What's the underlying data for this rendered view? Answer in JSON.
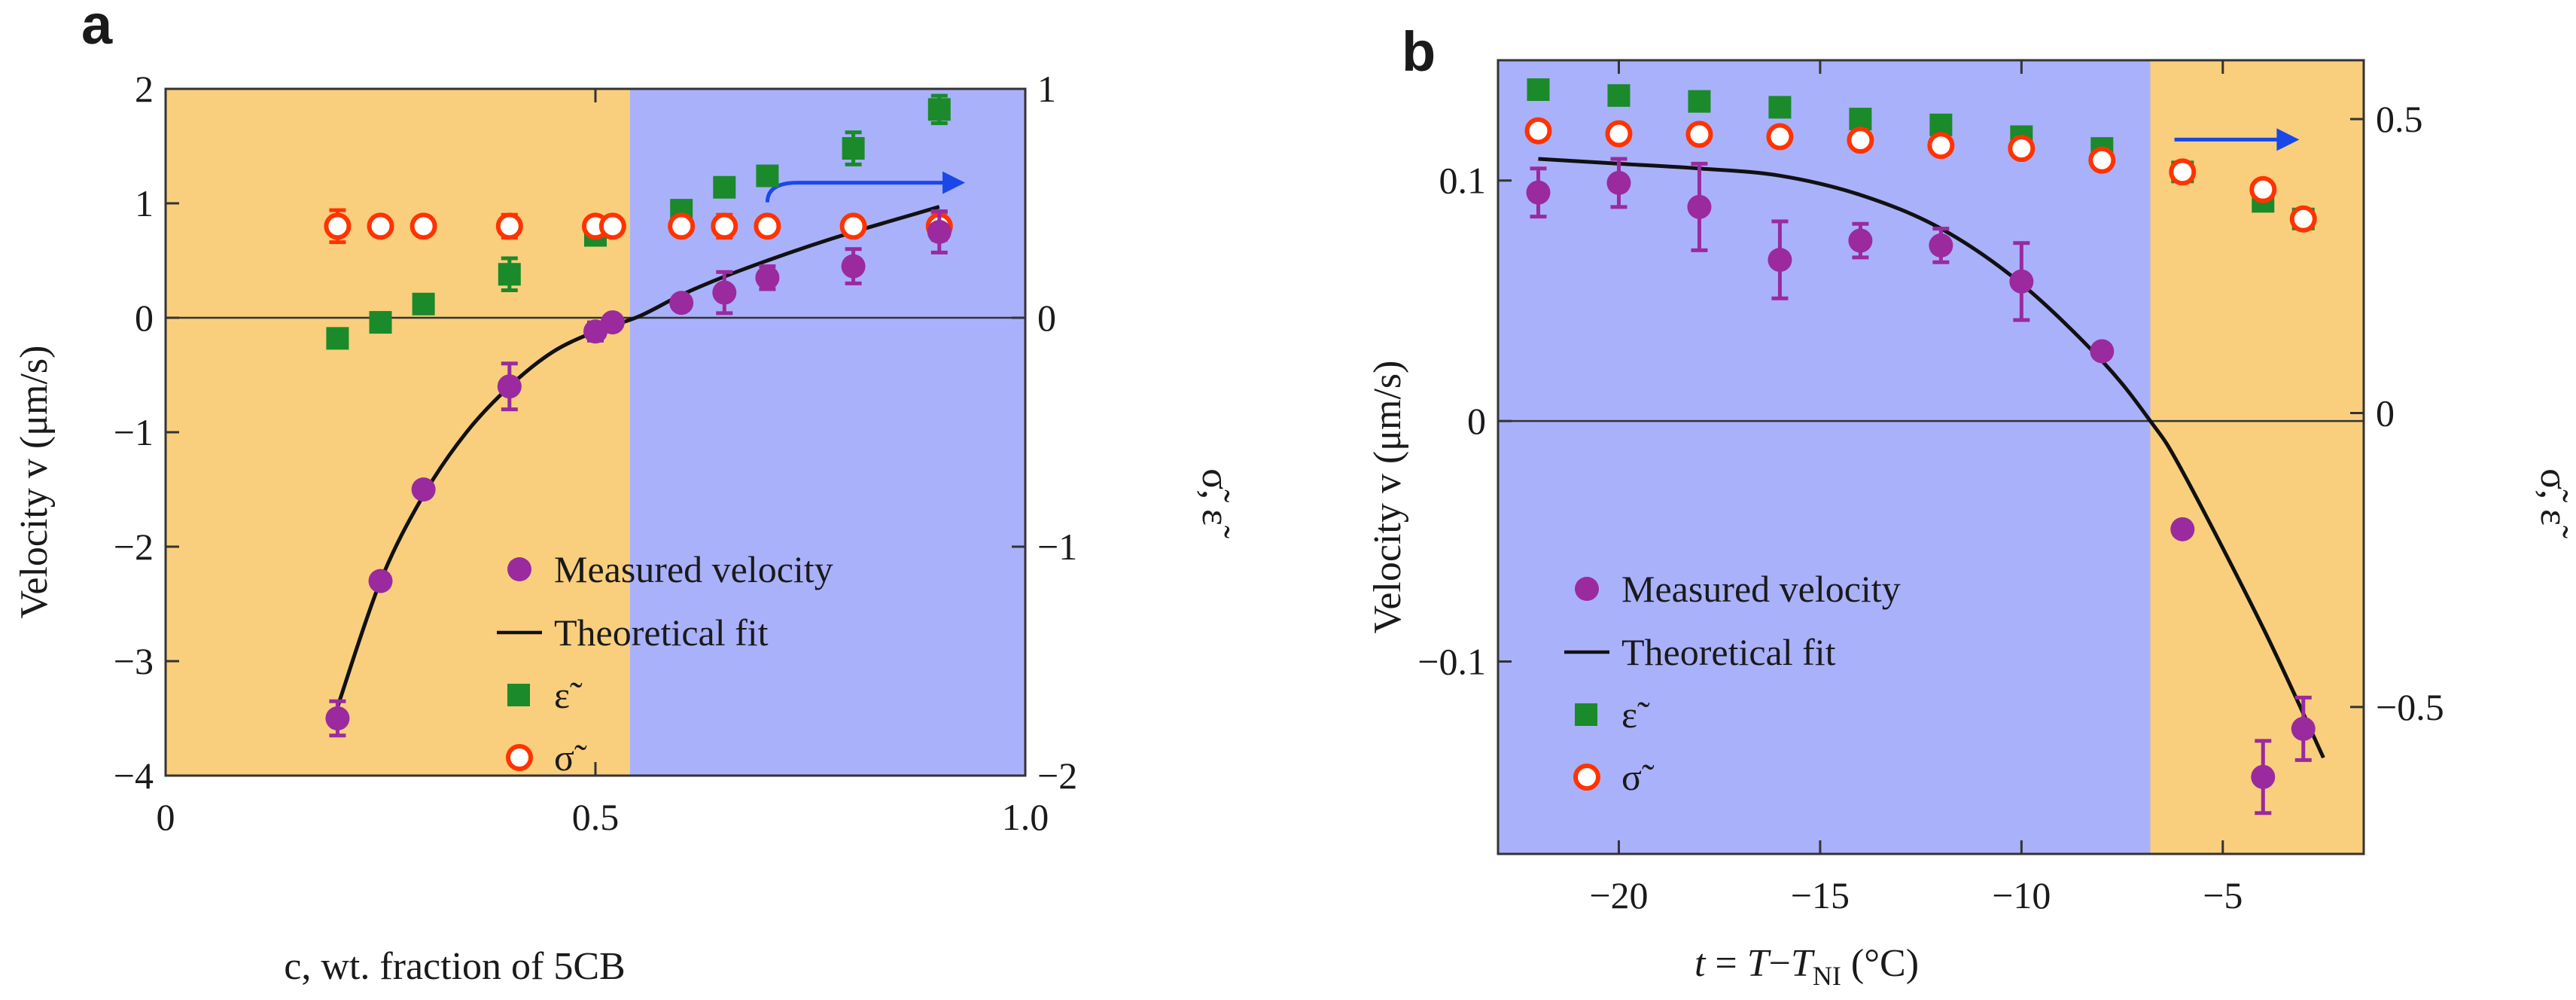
{
  "chart_data": [
    {
      "panel_label": "a",
      "type": "scatter",
      "xlabel": "c, wt. fraction of 5CB",
      "ylabel": "Velocity v (μm/s)",
      "ylabel_right": "σ̃, ε̃",
      "xlim": [
        0,
        1.0
      ],
      "ylim": [
        -4,
        2
      ],
      "ylim_right": [
        -2,
        1
      ],
      "x_ticks": [
        0,
        0.5,
        1.0
      ],
      "x_tick_labels": [
        "0",
        "0.5",
        "1.0"
      ],
      "y_ticks": [
        -4,
        -3,
        -2,
        -1,
        0,
        1,
        2
      ],
      "y_tick_labels": [
        "−4",
        "−3",
        "−2",
        "−1",
        "0",
        "1",
        "2"
      ],
      "y_right_ticks": [
        -2,
        -1,
        0,
        1
      ],
      "y_right_tick_labels": [
        "−2",
        "−1",
        "0",
        "1"
      ],
      "background_regions": [
        {
          "x_from": 0,
          "x_to": 0.54,
          "color": "#f9cf7d"
        },
        {
          "x_from": 0.54,
          "x_to": 1.0,
          "color": "#aab1fb"
        }
      ],
      "arrow": {
        "x_from": 0.7,
        "x_to": 0.93,
        "y": 1.18,
        "direction": "right",
        "color": "#1a48e8"
      },
      "series": [
        {
          "name": "Measured velocity",
          "marker": "circle",
          "color": "#9a2a9e",
          "axis": "left",
          "x": [
            0.2,
            0.25,
            0.3,
            0.4,
            0.5,
            0.52,
            0.6,
            0.65,
            0.7,
            0.8,
            0.9
          ],
          "y": [
            -3.5,
            -2.3,
            -1.5,
            -0.6,
            -0.12,
            -0.04,
            0.13,
            0.22,
            0.35,
            0.45,
            0.75
          ],
          "err": [
            0.15,
            0,
            0,
            0.2,
            0.08,
            0,
            0,
            0.18,
            0.1,
            0.15,
            0.18
          ]
        },
        {
          "name": "Theoretical fit",
          "marker": "line",
          "color": "#111111",
          "axis": "left",
          "x": [
            0.2,
            0.25,
            0.3,
            0.35,
            0.4,
            0.45,
            0.5,
            0.55,
            0.6,
            0.65,
            0.7,
            0.75,
            0.8,
            0.85,
            0.9
          ],
          "y": [
            -3.4,
            -2.3,
            -1.55,
            -1.0,
            -0.6,
            -0.3,
            -0.12,
            0.01,
            0.2,
            0.36,
            0.5,
            0.63,
            0.75,
            0.86,
            0.97
          ]
        },
        {
          "name": "ε̃",
          "marker": "square",
          "color": "#1a8a2a",
          "axis": "right",
          "x": [
            0.2,
            0.25,
            0.3,
            0.4,
            0.5,
            0.6,
            0.65,
            0.7,
            0.8,
            0.9
          ],
          "y": [
            -0.09,
            -0.02,
            0.06,
            0.19,
            0.36,
            0.47,
            0.57,
            0.62,
            0.74,
            0.91
          ],
          "err": [
            0,
            0.04,
            0,
            0.07,
            0.03,
            0,
            0.03,
            0.04,
            0.07,
            0.06
          ]
        },
        {
          "name": "σ̃",
          "marker": "open-circle",
          "color": "#ff3300",
          "axis": "right",
          "x": [
            0.2,
            0.25,
            0.3,
            0.4,
            0.5,
            0.52,
            0.6,
            0.65,
            0.7,
            0.8,
            0.9
          ],
          "y": [
            0.4,
            0.4,
            0.4,
            0.4,
            0.4,
            0.4,
            0.4,
            0.4,
            0.4,
            0.4,
            0.4
          ],
          "err": [
            0.07,
            0,
            0,
            0.05,
            0,
            0,
            0,
            0.05,
            0,
            0,
            0.06
          ]
        }
      ]
    },
    {
      "panel_label": "b",
      "type": "scatter",
      "xlabel_parts": [
        "t",
        " = ",
        "T",
        "−",
        "T",
        "NI",
        " (°C)"
      ],
      "ylabel": "Velocity v (μm/s)",
      "ylabel_right": "σ̃, ε̃",
      "xlim": [
        -23,
        -1.5
      ],
      "ylim": [
        -0.18,
        0.15
      ],
      "ylim_right": [
        -0.75,
        0.6
      ],
      "x_ticks": [
        -20,
        -15,
        -10,
        -5
      ],
      "x_tick_labels": [
        "−20",
        "−15",
        "−10",
        "−5"
      ],
      "y_ticks": [
        -0.1,
        0,
        0.1
      ],
      "y_tick_labels": [
        "−0.1",
        "0",
        "0.1"
      ],
      "y_right_ticks": [
        -0.5,
        0,
        0.5
      ],
      "y_right_tick_labels": [
        "−0.5",
        "0",
        "0.5"
      ],
      "background_regions": [
        {
          "x_from": -23,
          "x_to": -6.8,
          "color": "#aab1fb"
        },
        {
          "x_from": -6.8,
          "x_to": -1.5,
          "color": "#f9cf7d"
        }
      ],
      "arrow": {
        "x_from": -6.2,
        "x_to": -3.1,
        "y": 0.117,
        "direction": "right",
        "color": "#1a48e8"
      },
      "series": [
        {
          "name": "Measured velocity",
          "marker": "circle",
          "color": "#9a2a9e",
          "axis": "left",
          "x": [
            -22,
            -20,
            -18,
            -16,
            -14,
            -12,
            -10,
            -8,
            -6,
            -4,
            -3
          ],
          "y": [
            0.095,
            0.099,
            0.089,
            0.067,
            0.075,
            0.073,
            0.058,
            0.029,
            -0.045,
            -0.148,
            -0.128
          ],
          "err": [
            0.01,
            0.01,
            0.018,
            0.016,
            0.007,
            0.007,
            0.016,
            0,
            0,
            0.015,
            0.013
          ]
        },
        {
          "name": "Theoretical fit",
          "marker": "line",
          "color": "#111111",
          "axis": "left",
          "x": [
            -22,
            -20,
            -18,
            -16,
            -14,
            -12,
            -10,
            -8,
            -6.8,
            -6,
            -4,
            -2.5
          ],
          "y": [
            0.109,
            0.107,
            0.105,
            0.102,
            0.094,
            0.08,
            0.057,
            0.025,
            0.0,
            -0.021,
            -0.086,
            -0.14
          ]
        },
        {
          "name": "ε̃",
          "marker": "square",
          "color": "#1a8a2a",
          "axis": "right",
          "x": [
            -22,
            -20,
            -18,
            -16,
            -14,
            -12,
            -10,
            -8,
            -6,
            -4,
            -3
          ],
          "y": [
            0.55,
            0.54,
            0.53,
            0.52,
            0.5,
            0.49,
            0.47,
            0.45,
            0.41,
            0.36,
            0.33
          ]
        },
        {
          "name": "σ̃",
          "marker": "open-circle",
          "color": "#ff3300",
          "axis": "right",
          "x": [
            -22,
            -20,
            -18,
            -16,
            -14,
            -12,
            -10,
            -8,
            -6,
            -4,
            -3
          ],
          "y": [
            0.48,
            0.475,
            0.474,
            0.47,
            0.464,
            0.455,
            0.45,
            0.43,
            0.41,
            0.38,
            0.33
          ]
        }
      ]
    }
  ]
}
